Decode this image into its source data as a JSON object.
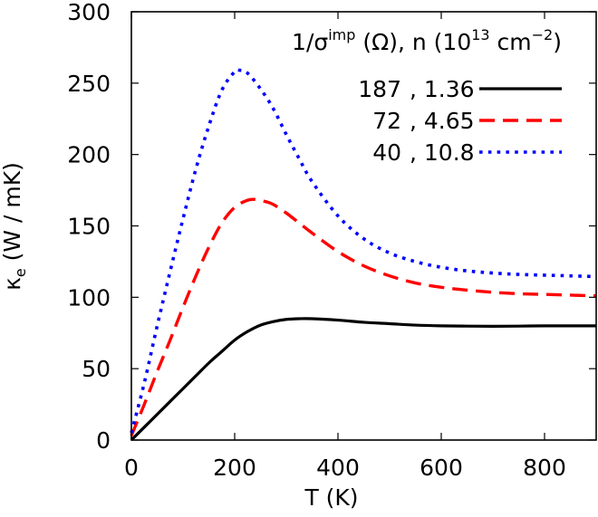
{
  "chart_data": {
    "type": "line",
    "title": "",
    "xlabel": "T (K)",
    "ylabel": {
      "symbol": "κ",
      "subscript": "e",
      "units": " (W / mK)"
    },
    "xlim": [
      0,
      900
    ],
    "ylim": [
      0,
      300
    ],
    "xticks": [
      0,
      200,
      400,
      600,
      800
    ],
    "xtick_labels": [
      "0",
      "200",
      "400",
      "600",
      "800"
    ],
    "yticks": [
      0,
      50,
      100,
      150,
      200,
      250,
      300
    ],
    "ytick_labels": [
      "0",
      "50",
      "100",
      "150",
      "200",
      "250",
      "300"
    ],
    "grid": false,
    "legend": {
      "placement": "top-right",
      "title": {
        "prefix": "1/σ",
        "superscript": "imp",
        "middle": " (Ω), n (10",
        "exp": "13",
        "suffix1": " cm",
        "exp2": "−2",
        "suffix2": ")"
      }
    },
    "series": [
      {
        "name": "187 , 1.36",
        "inv_sigma_imp": "187",
        "n": "1.36",
        "color": "#000000",
        "style": "solid",
        "x": [
          0,
          25,
          50,
          75,
          100,
          125,
          150,
          175,
          200,
          225,
          250,
          275,
          300,
          325,
          350,
          400,
          450,
          500,
          550,
          600,
          650,
          700,
          750,
          800,
          850,
          900
        ],
        "y": [
          0,
          9,
          18,
          27,
          36,
          45,
          54,
          62,
          70,
          76,
          80.5,
          83,
          84.5,
          85,
          85,
          84,
          82.5,
          81.5,
          80.5,
          80,
          79.8,
          79.7,
          79.8,
          80,
          80,
          80
        ]
      },
      {
        "name": "72 , 4.65",
        "inv_sigma_imp": "72",
        "n": "4.65",
        "color": "#ff0000",
        "style": "dashed",
        "x": [
          0,
          25,
          50,
          75,
          100,
          125,
          150,
          175,
          200,
          225,
          240,
          260,
          275,
          300,
          325,
          350,
          400,
          450,
          500,
          550,
          600,
          650,
          700,
          750,
          800,
          850,
          900
        ],
        "y": [
          3,
          25,
          48,
          70,
          93,
          115,
          135,
          152,
          163,
          168,
          168.5,
          167,
          165,
          159,
          152,
          145,
          132,
          122,
          115,
          110,
          107,
          105,
          103.5,
          102.5,
          102,
          101.5,
          101
        ]
      },
      {
        "name": "40 , 10.8",
        "inv_sigma_imp": "40",
        "n": "10.8",
        "color": "#0000ff",
        "style": "dotted",
        "x": [
          0,
          25,
          50,
          75,
          100,
          125,
          150,
          175,
          200,
          210,
          225,
          250,
          275,
          300,
          325,
          350,
          400,
          450,
          500,
          550,
          600,
          650,
          700,
          750,
          800,
          850,
          900
        ],
        "y": [
          5,
          40,
          80,
          118,
          155,
          190,
          220,
          245,
          258,
          259,
          257,
          246,
          232,
          214,
          197,
          181,
          157,
          141,
          131,
          125,
          121,
          118.5,
          117,
          116,
          115.5,
          115,
          114.5
        ]
      }
    ]
  }
}
